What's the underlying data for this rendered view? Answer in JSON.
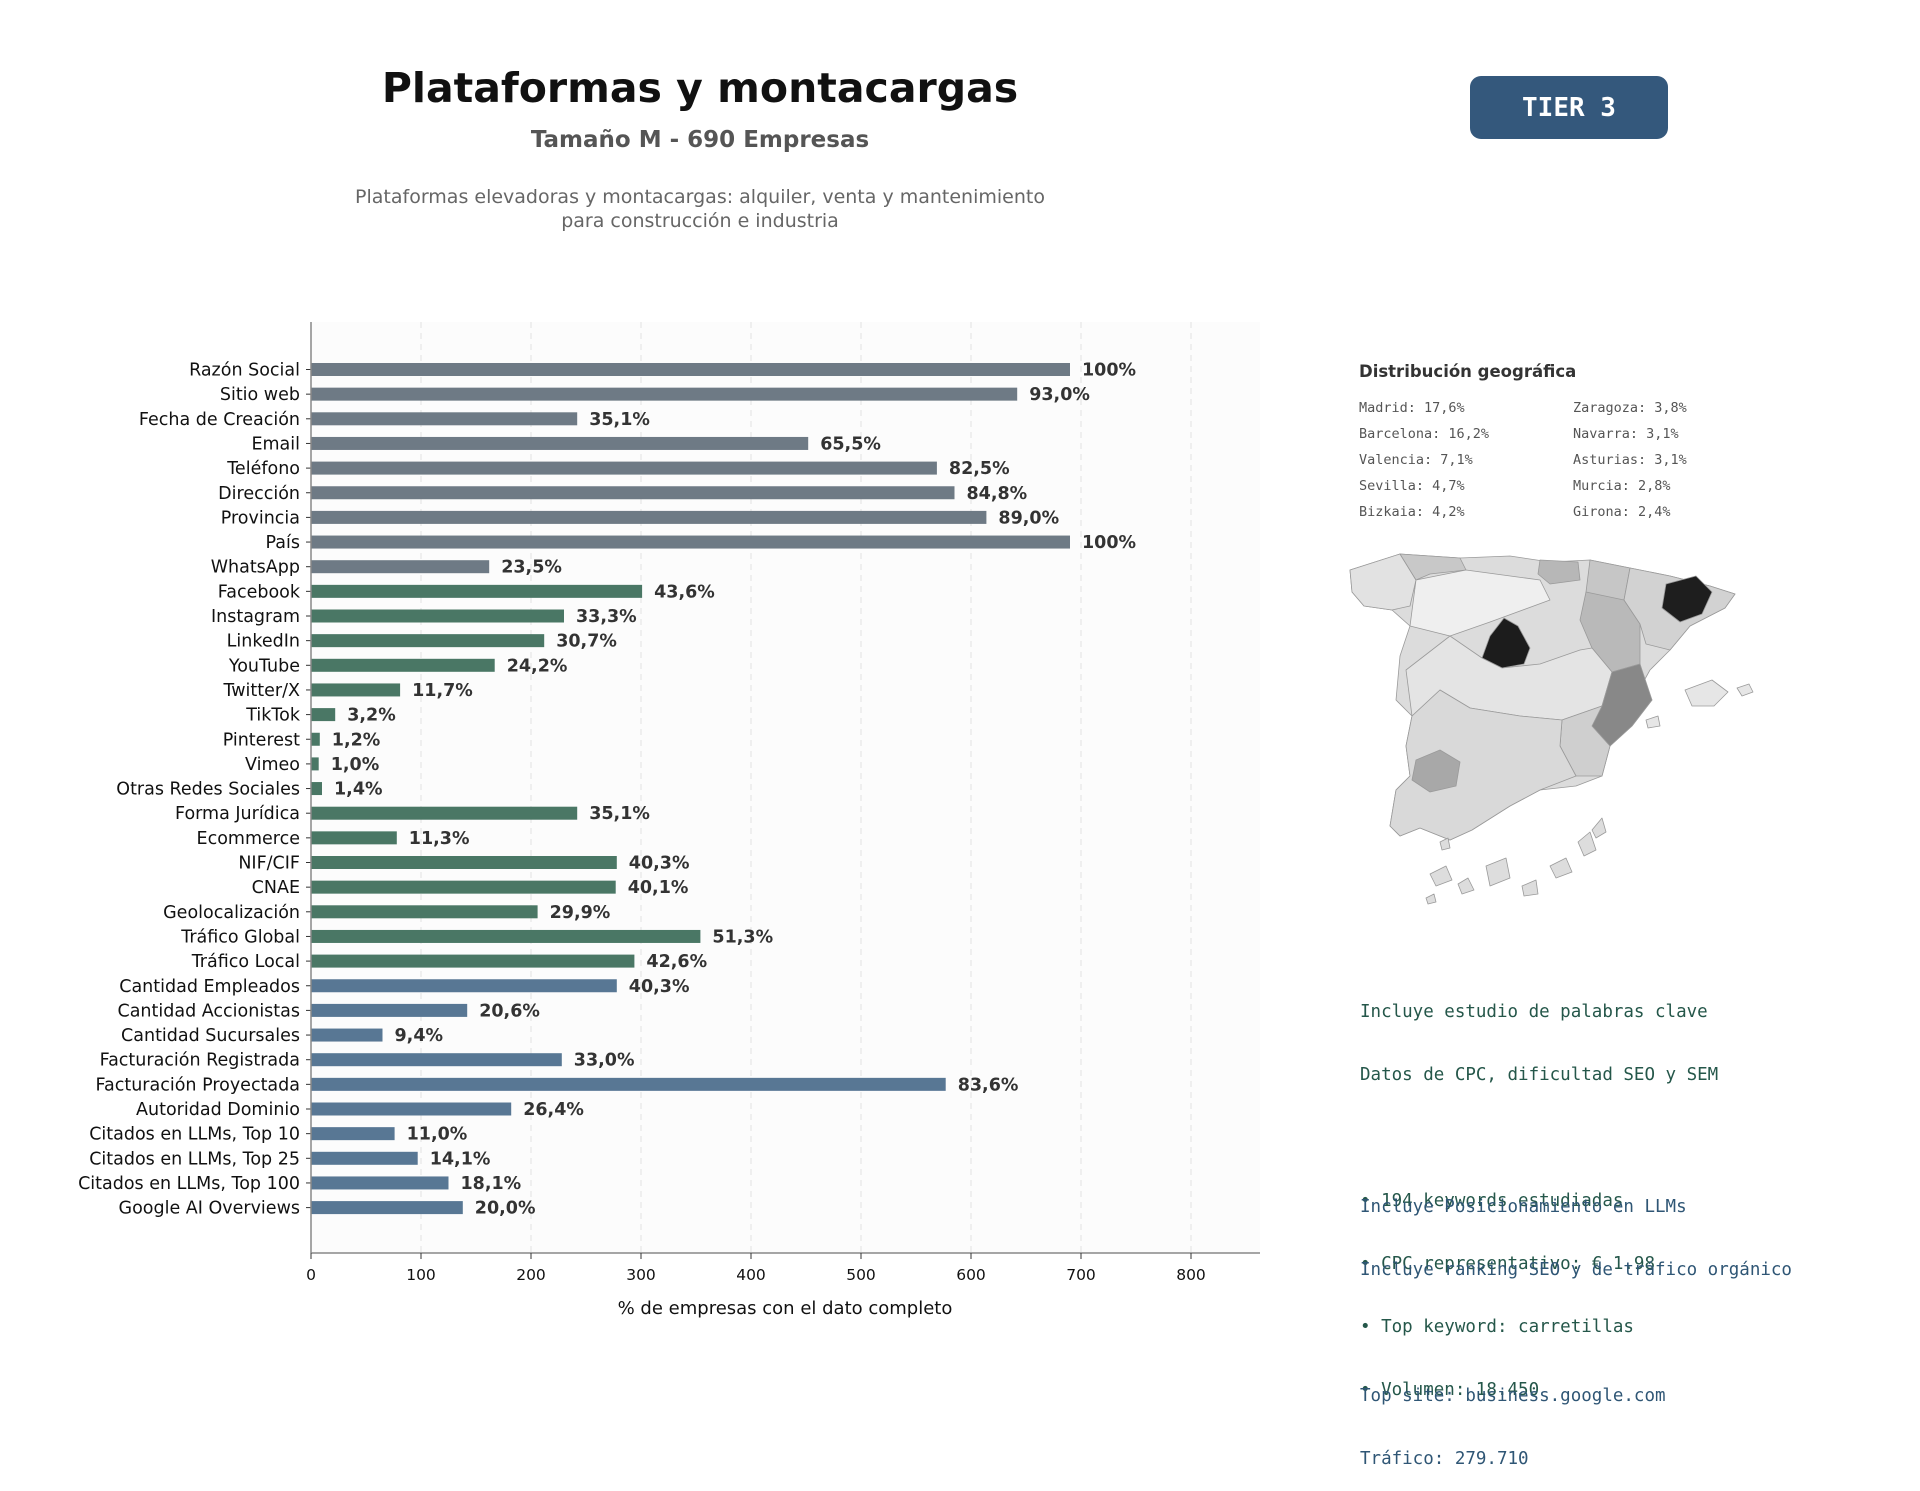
{
  "header": {
    "title": "Plataformas y montacargas",
    "subtitle": "Tamaño M - 690 Empresas",
    "description_line1": "Plataformas elevadoras y montacargas: alquiler, venta y mantenimiento",
    "description_line2": "para construcción e industria",
    "tier": "TIER 3"
  },
  "chart_data": {
    "type": "bar",
    "orientation": "horizontal",
    "xlabel": "% de empresas con el dato completo",
    "xlim": [
      0,
      860
    ],
    "xticks": [
      0,
      100,
      200,
      300,
      400,
      500,
      600,
      700,
      800
    ],
    "grid": "vertical-dashed",
    "colors": {
      "group1": "#6e7a85",
      "group2": "#4a7765",
      "group3": "#587794"
    },
    "categories": [
      "Razón Social",
      "Sitio web",
      "Fecha de Creación",
      "Email",
      "Teléfono",
      "Dirección",
      "Provincia",
      "País",
      "WhatsApp",
      "Facebook",
      "Instagram",
      "LinkedIn",
      "YouTube",
      "Twitter/X",
      "TikTok",
      "Pinterest",
      "Vimeo",
      "Otras Redes Sociales",
      "Forma Jurídica",
      "Ecommerce",
      "NIF/CIF",
      "CNAE",
      "Geolocalización",
      "Tráfico Global",
      "Tráfico Local",
      "Cantidad Empleados",
      "Cantidad Accionistas",
      "Cantidad Sucursales",
      "Facturación Registrada",
      "Facturación Proyectada",
      "Autoridad Dominio",
      "Citados en LLMs, Top 10",
      "Citados en LLMs, Top 25",
      "Citados en LLMs, Top 100",
      "Google AI Overviews"
    ],
    "values": [
      690,
      642,
      242,
      452,
      569,
      585,
      614,
      690,
      162,
      301,
      230,
      212,
      167,
      81,
      22,
      8,
      7,
      10,
      242,
      78,
      278,
      277,
      206,
      354,
      294,
      278,
      142,
      65,
      228,
      577,
      182,
      76,
      97,
      125,
      138
    ],
    "labels": [
      "100%",
      "93,0%",
      "35,1%",
      "65,5%",
      "82,5%",
      "84,8%",
      "89,0%",
      "100%",
      "23,5%",
      "43,6%",
      "33,3%",
      "30,7%",
      "24,2%",
      "11,7%",
      "3,2%",
      "1,2%",
      "1,0%",
      "1,4%",
      "35,1%",
      "11,3%",
      "40,3%",
      "40,1%",
      "29,9%",
      "51,3%",
      "42,6%",
      "40,3%",
      "20,6%",
      "9,4%",
      "33,0%",
      "83,6%",
      "26,4%",
      "11,0%",
      "14,1%",
      "18,1%",
      "20,0%"
    ],
    "groups": [
      1,
      1,
      1,
      1,
      1,
      1,
      1,
      1,
      1,
      2,
      2,
      2,
      2,
      2,
      2,
      2,
      2,
      2,
      2,
      2,
      2,
      2,
      2,
      2,
      2,
      3,
      3,
      3,
      3,
      3,
      3,
      3,
      3,
      3,
      3
    ]
  },
  "geo": {
    "title": "Distribución geográfica",
    "items": [
      "Madrid: 17,6%",
      "Zaragoza: 3,8%",
      "Barcelona: 16,2%",
      "Navarra: 3,1%",
      "Valencia: 7,1%",
      "Asturias: 3,1%",
      "Sevilla: 4,7%",
      "Murcia: 2,8%",
      "Bizkaia: 4,2%",
      "Girona: 2,4%"
    ]
  },
  "keywords": {
    "line1": "Incluye estudio de palabras clave",
    "line2": "Datos de CPC, dificultad SEO y SEM",
    "bullet1": "• 194 keywords estudiadas",
    "bullet2": "• CPC representativo: € 1.98",
    "bullet3": "• Top keyword: carretillas",
    "bullet4": "• Volumen: 18.450"
  },
  "llm": {
    "line1": "Incluye Posicionamiento en LLMs",
    "line2": "Incluye ranking SEO y de tráfico orgánico",
    "line3": "Top site: business.google.com",
    "line4": "Tráfico: 279.710"
  }
}
